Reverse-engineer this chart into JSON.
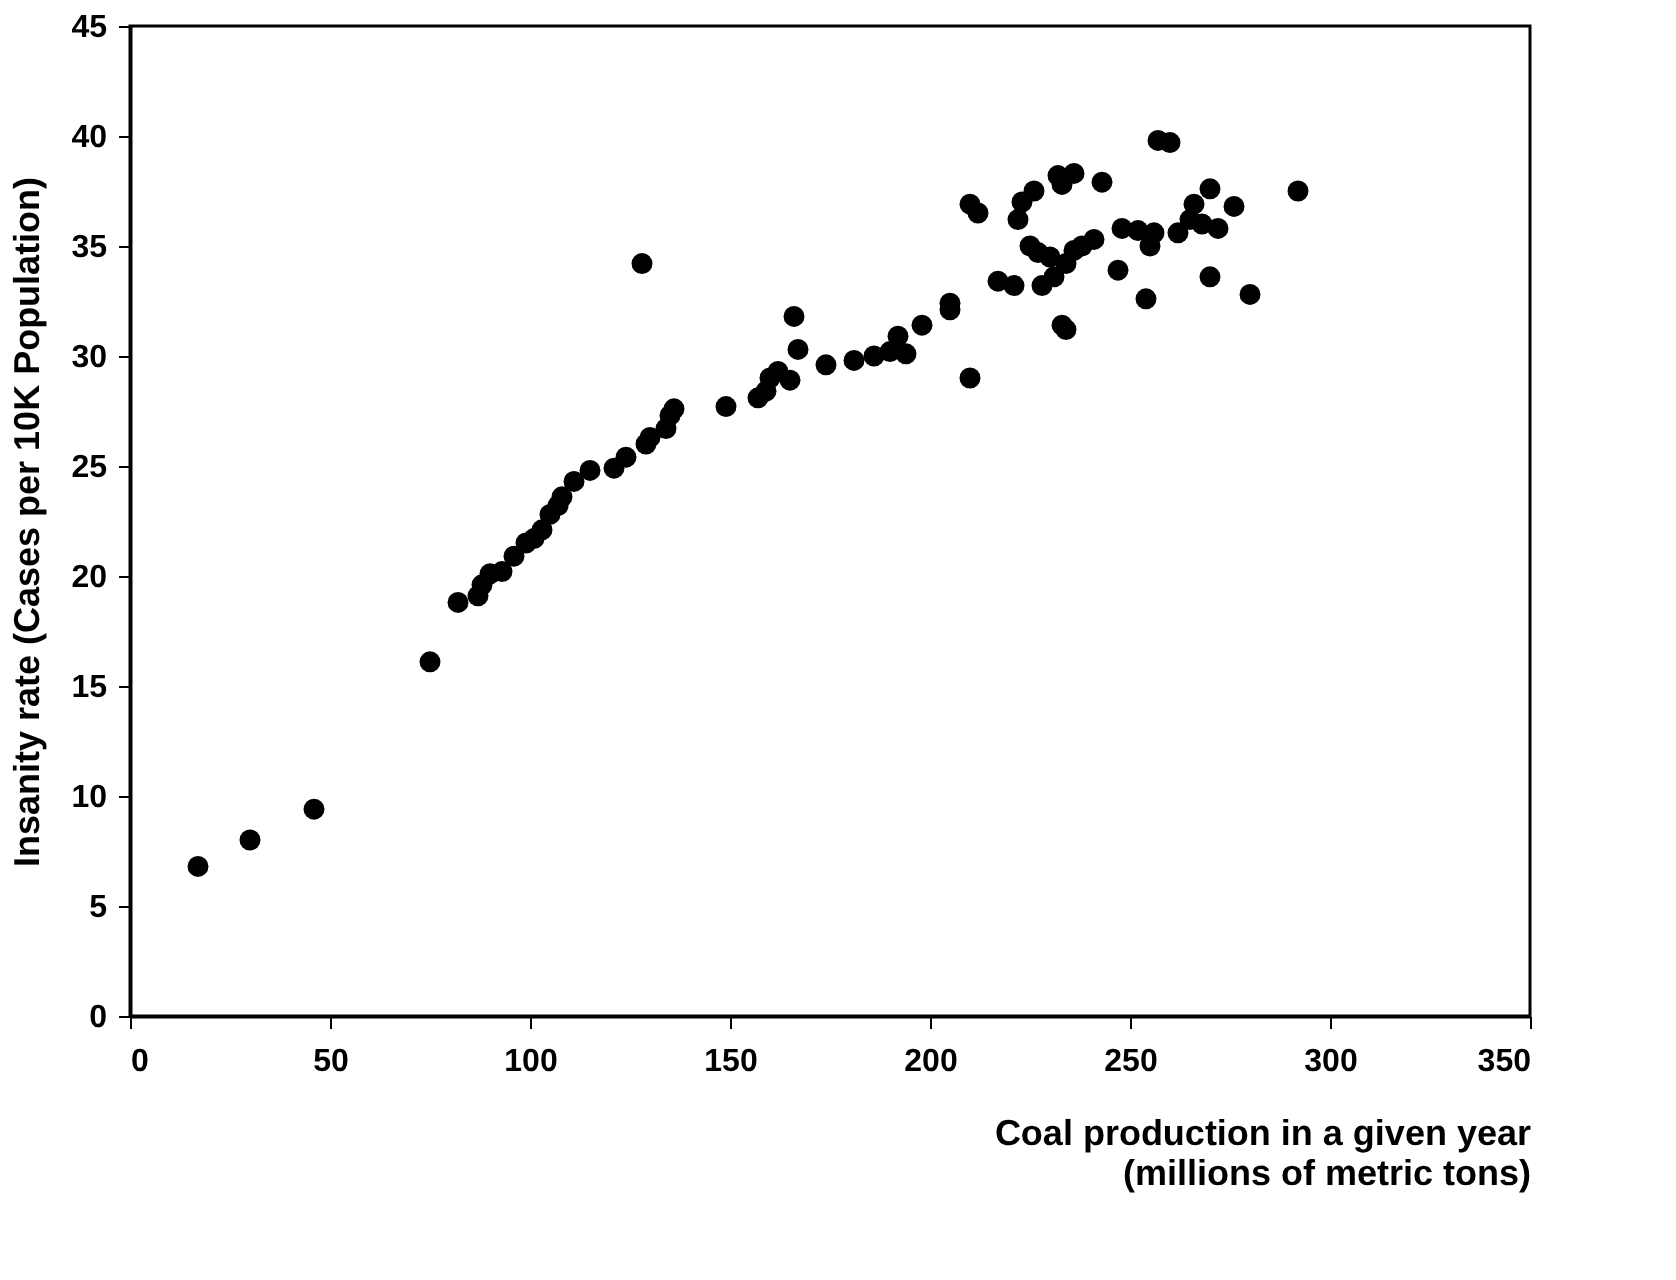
{
  "chart_data": {
    "type": "scatter",
    "xlabel": "Coal production in a given year\n(millions of metric tons)",
    "ylabel": "Insanity rate (Cases per 10K Population)",
    "x": [
      17,
      30,
      46,
      75,
      82,
      87,
      88,
      90,
      93,
      96,
      99,
      101,
      103,
      105,
      107,
      108,
      111,
      115,
      121,
      124,
      128,
      129,
      130,
      134,
      135,
      136,
      149,
      157,
      159,
      160,
      162,
      165,
      166,
      167,
      174,
      181,
      186,
      190,
      192,
      194,
      198,
      205,
      205,
      210,
      210,
      212,
      217,
      221,
      222,
      223,
      225,
      226,
      227,
      228,
      230,
      231,
      232,
      233,
      233,
      234,
      234,
      236,
      236,
      238,
      241,
      243,
      247,
      248,
      252,
      254,
      255,
      256,
      257,
      260,
      262,
      265,
      266,
      268,
      270,
      270,
      272,
      276,
      280,
      292
    ],
    "series": [
      {
        "color": "#000000",
        "values": [
          6.8,
          8.0,
          9.4,
          16.1,
          18.8,
          19.1,
          19.6,
          20.1,
          20.2,
          20.9,
          21.5,
          21.7,
          22.1,
          22.8,
          23.2,
          23.6,
          24.3,
          24.8,
          24.9,
          25.4,
          34.2,
          26.0,
          26.3,
          26.7,
          27.3,
          27.6,
          27.7,
          28.1,
          28.4,
          29.0,
          29.3,
          28.9,
          31.8,
          30.3,
          29.6,
          29.8,
          30.0,
          30.2,
          30.9,
          30.1,
          31.4,
          32.1,
          32.4,
          29.0,
          36.9,
          36.5,
          33.4,
          33.2,
          36.2,
          37.0,
          35.0,
          37.5,
          34.7,
          33.2,
          34.5,
          33.6,
          38.2,
          37.8,
          31.4,
          31.2,
          34.2,
          34.8,
          38.3,
          35.0,
          35.3,
          37.9,
          33.9,
          35.8,
          35.7,
          32.6,
          35.0,
          35.6,
          39.8,
          39.7,
          35.6,
          36.2,
          36.9,
          36.0,
          37.6,
          33.6,
          35.8,
          36.8,
          32.8,
          37.5
        ]
      }
    ],
    "xlim": [
      0,
      350
    ],
    "xticks": [
      0,
      50,
      100,
      150,
      200,
      250,
      300,
      350
    ],
    "ylim": [
      0,
      45
    ],
    "yticks": [
      0,
      5,
      10,
      15,
      20,
      25,
      30,
      35,
      40,
      45
    ],
    "marker": "circle",
    "grid": false
  }
}
